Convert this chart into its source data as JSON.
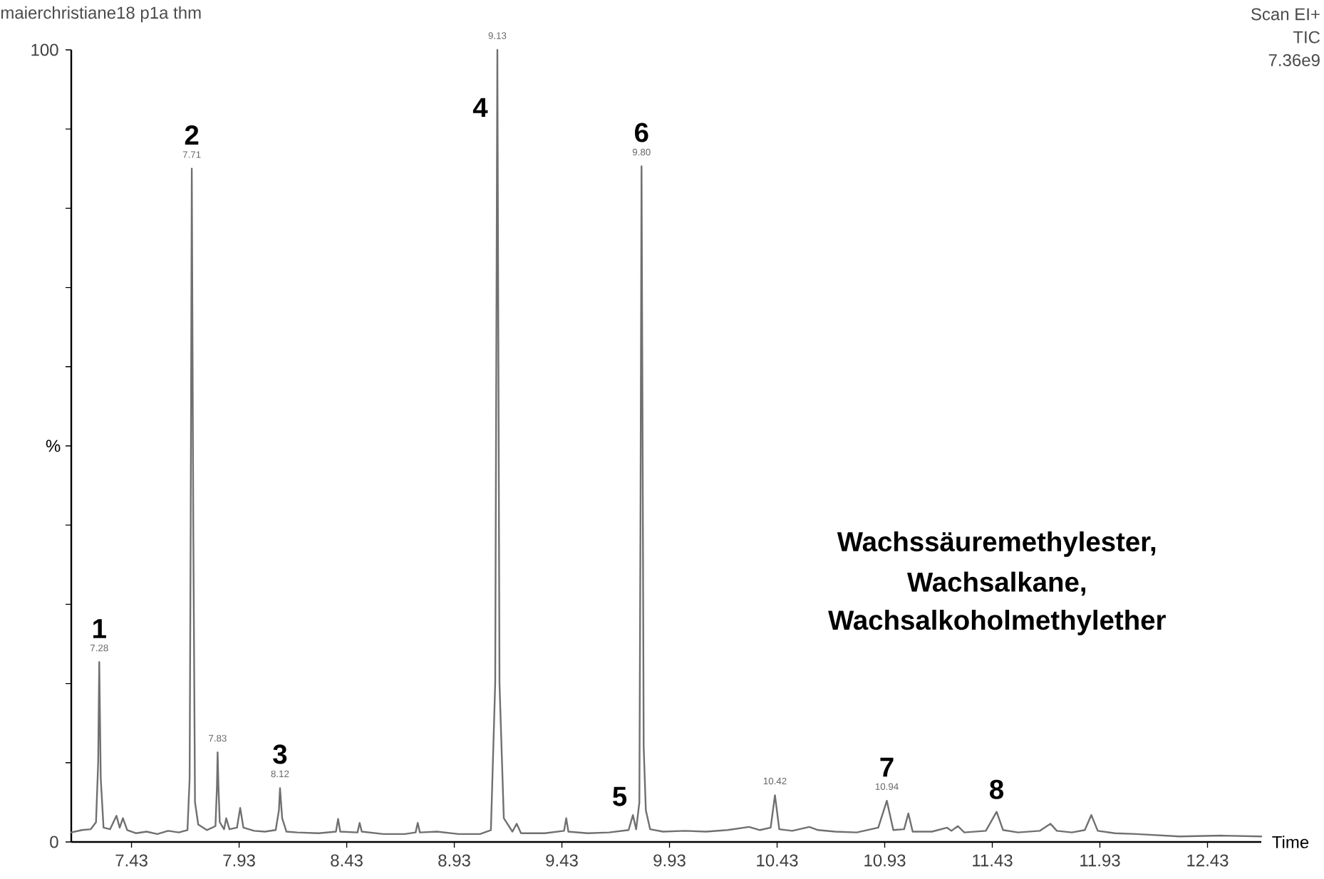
{
  "chart_data": {
    "type": "line",
    "xlabel": "Time",
    "ylabel": "%",
    "xlim": [
      7.15,
      12.68
    ],
    "ylim": [
      0,
      100
    ],
    "xticks": [
      7.43,
      7.93,
      8.43,
      8.93,
      9.43,
      9.93,
      10.43,
      10.93,
      11.43,
      11.93,
      12.43
    ],
    "yticks": [
      0,
      {
        "value": 10,
        "label": null
      },
      {
        "value": 20,
        "label": null
      },
      {
        "value": 30,
        "label": null
      },
      {
        "value": 40,
        "label": null
      },
      {
        "value": 50,
        "label": null
      },
      {
        "value": 60,
        "label": null
      },
      {
        "value": 70,
        "label": null
      },
      {
        "value": 80,
        "label": null
      },
      {
        "value": 90,
        "label": null
      },
      100
    ],
    "grid": false,
    "marker": "none",
    "line_style": "solid",
    "series": [
      {
        "color": "#707070",
        "x": [
          7.15,
          7.2,
          7.24,
          7.265,
          7.275,
          7.28,
          7.287,
          7.3,
          7.33,
          7.36,
          7.375,
          7.39,
          7.41,
          7.45,
          7.5,
          7.55,
          7.6,
          7.65,
          7.69,
          7.7,
          7.705,
          7.71,
          7.717,
          7.725,
          7.74,
          7.78,
          7.82,
          7.827,
          7.83,
          7.834,
          7.84,
          7.86,
          7.87,
          7.885,
          7.92,
          7.935,
          7.95,
          8.0,
          8.05,
          8.1,
          8.115,
          8.12,
          8.13,
          8.15,
          8.2,
          8.3,
          8.38,
          8.39,
          8.4,
          8.48,
          8.49,
          8.5,
          8.6,
          8.7,
          8.75,
          8.76,
          8.77,
          8.85,
          8.95,
          9.05,
          9.1,
          9.12,
          9.13,
          9.14,
          9.16,
          9.2,
          9.22,
          9.24,
          9.35,
          9.44,
          9.45,
          9.46,
          9.55,
          9.65,
          9.74,
          9.76,
          9.775,
          9.79,
          9.795,
          9.8,
          9.805,
          9.81,
          9.82,
          9.84,
          9.9,
          10.0,
          10.1,
          10.2,
          10.3,
          10.35,
          10.4,
          10.42,
          10.44,
          10.5,
          10.58,
          10.62,
          10.7,
          10.8,
          10.9,
          10.94,
          10.97,
          11.02,
          11.04,
          11.06,
          11.15,
          11.22,
          11.24,
          11.27,
          11.3,
          11.4,
          11.45,
          11.48,
          11.55,
          11.65,
          11.7,
          11.73,
          11.8,
          11.86,
          11.89,
          11.92,
          12.0,
          12.1,
          12.3,
          12.5,
          12.68
        ],
        "values": [
          1.2,
          1.5,
          1.6,
          2.5,
          10,
          22.7,
          8,
          1.8,
          1.6,
          3.3,
          1.8,
          3.0,
          1.5,
          1.1,
          1.3,
          1.0,
          1.4,
          1.2,
          1.5,
          8,
          40,
          85,
          40,
          5,
          2.2,
          1.5,
          2,
          7,
          11.3,
          7,
          2.5,
          1.6,
          3.0,
          1.6,
          1.8,
          4.3,
          1.8,
          1.4,
          1.3,
          1.5,
          4,
          6.8,
          3,
          1.3,
          1.2,
          1.1,
          1.3,
          2.9,
          1.3,
          1.2,
          2.4,
          1.3,
          1.0,
          1.0,
          1.2,
          2.4,
          1.2,
          1.3,
          1.0,
          1.0,
          1.5,
          20,
          100,
          20,
          3,
          1.3,
          2.3,
          1.1,
          1.1,
          1.4,
          3.0,
          1.3,
          1.1,
          1.2,
          1.5,
          3.4,
          1.6,
          5,
          40,
          85.3,
          50,
          12,
          4,
          1.6,
          1.3,
          1.4,
          1.3,
          1.5,
          1.9,
          1.5,
          1.8,
          5.9,
          1.6,
          1.4,
          1.9,
          1.5,
          1.3,
          1.2,
          1.8,
          5.2,
          1.5,
          1.6,
          3.6,
          1.3,
          1.3,
          1.8,
          1.4,
          2.0,
          1.2,
          1.4,
          3.8,
          1.5,
          1.2,
          1.4,
          2.3,
          1.4,
          1.2,
          1.5,
          3.4,
          1.4,
          1.1,
          1.0,
          0.7,
          0.8,
          0.7
        ]
      }
    ],
    "annotations": [
      "maierchristiane18 p1a thm",
      "Scan EI+",
      "TIC",
      "7.36e9",
      "Wachssäuremethylester,",
      "Wachsalkane,",
      "Wachsalkoholmethylether",
      {
        "text": "7.28",
        "x": 7.28,
        "y": 22.7
      },
      {
        "text": "1",
        "x": 7.28,
        "y": 22.7
      },
      {
        "text": "7.71",
        "x": 7.71,
        "y": 85
      },
      {
        "text": "2",
        "x": 7.71,
        "y": 85
      },
      {
        "text": "7.83",
        "x": 7.83,
        "y": 11.3
      },
      {
        "text": "8.12",
        "x": 8.12,
        "y": 6.8
      },
      {
        "text": "3",
        "x": 8.12,
        "y": 6.8
      },
      {
        "text": "9.13",
        "x": 9.13,
        "y": 100
      },
      {
        "text": "4",
        "x": 9.13,
        "y": 100
      },
      {
        "text": "5",
        "x": 9.76,
        "y": 3.4
      },
      {
        "text": "9.80",
        "x": 9.8,
        "y": 85.3
      },
      {
        "text": "6",
        "x": 9.8,
        "y": 85.3
      },
      {
        "text": "10.42",
        "x": 10.42,
        "y": 5.9
      },
      {
        "text": "10.94",
        "x": 10.94,
        "y": 5.2
      },
      {
        "text": "7",
        "x": 10.94,
        "y": 5.2
      },
      {
        "text": "8",
        "x": 11.45,
        "y": 3.8
      }
    ]
  }
}
